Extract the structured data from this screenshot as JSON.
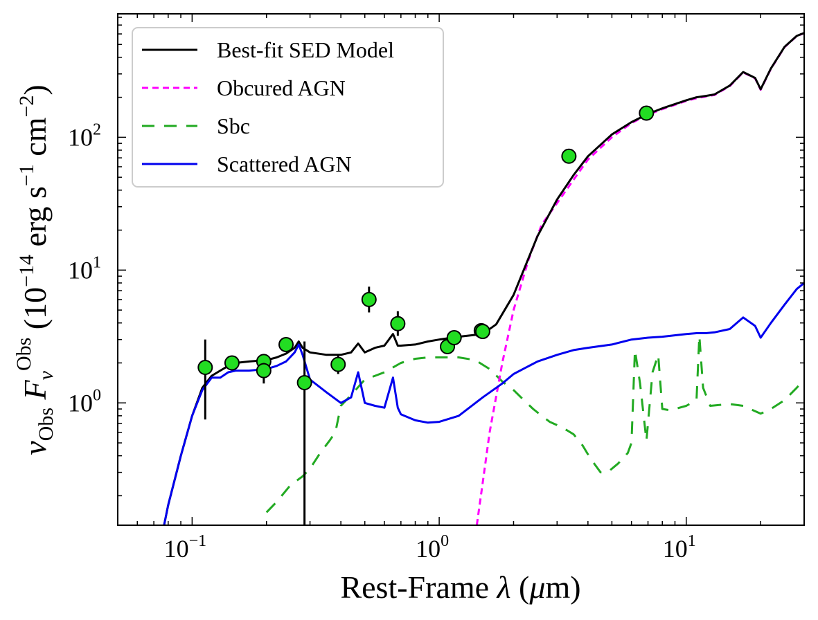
{
  "chart_data": {
    "type": "line",
    "xlabel": "Rest-Frame λ (μm)",
    "ylabel": "ν_Obs F_ν^Obs (10^−14 erg s^−1 cm^−2)",
    "x_scale": "log",
    "y_scale": "log",
    "xlim": [
      0.05,
      30
    ],
    "ylim": [
      0.12,
      850
    ],
    "grid": false,
    "legend_placement": "top-left",
    "x_ticks": [
      {
        "value": 0.1,
        "base": "10",
        "exp": "−1"
      },
      {
        "value": 1,
        "base": "10",
        "exp": "0"
      },
      {
        "value": 10,
        "base": "10",
        "exp": "1"
      }
    ],
    "y_ticks": [
      {
        "value": 1,
        "base": "10",
        "exp": "0"
      },
      {
        "value": 10,
        "base": "10",
        "exp": "1"
      },
      {
        "value": 100,
        "base": "10",
        "exp": "2"
      }
    ],
    "series": [
      {
        "name": "Best-fit SED Model",
        "style": "solid",
        "color": "#000000",
        "x": [
          0.077,
          0.08,
          0.09,
          0.1,
          0.11,
          0.12,
          0.13,
          0.14,
          0.15,
          0.17,
          0.2,
          0.22,
          0.24,
          0.26,
          0.27,
          0.28,
          0.3,
          0.35,
          0.4,
          0.44,
          0.47,
          0.5,
          0.55,
          0.6,
          0.65,
          0.68,
          0.7,
          0.8,
          0.9,
          1.0,
          1.2,
          1.5,
          1.7,
          2.0,
          2.5,
          3.0,
          3.5,
          4.0,
          5.0,
          6.0,
          7.0,
          8.0,
          10.0,
          11.0,
          12.0,
          13.0,
          15.0,
          17.0,
          19.0,
          20.0,
          22.0,
          25.0,
          28.0,
          30.0
        ],
        "y": [
          0.12,
          0.17,
          0.4,
          0.8,
          1.3,
          1.6,
          1.75,
          1.9,
          2.0,
          2.05,
          2.1,
          2.2,
          2.35,
          2.6,
          2.9,
          2.6,
          2.4,
          2.3,
          2.3,
          2.4,
          2.8,
          2.4,
          2.6,
          2.7,
          3.3,
          2.7,
          2.7,
          2.75,
          2.9,
          3.0,
          3.15,
          3.3,
          3.9,
          6.5,
          18,
          34,
          52,
          72,
          105,
          130,
          150,
          165,
          190,
          200,
          205,
          210,
          245,
          310,
          280,
          230,
          330,
          480,
          580,
          610
        ]
      },
      {
        "name": "Obcured AGN",
        "style": "dashed",
        "color": "#ff00ff",
        "x": [
          1.42,
          1.5,
          1.6,
          1.8,
          2.0,
          2.3,
          2.6,
          3.0,
          3.5,
          4.0,
          5.0,
          6.0,
          7.0,
          8.0,
          10.0,
          11.0,
          12.0,
          13.0,
          15.0,
          17.0,
          19.0,
          20.0,
          22.0,
          25.0,
          28.0,
          30.0
        ],
        "y": [
          0.12,
          0.25,
          0.6,
          2.0,
          5.0,
          12,
          22,
          32,
          48,
          68,
          100,
          128,
          148,
          163,
          188,
          197,
          203,
          208,
          243,
          308,
          278,
          228,
          328,
          478,
          578,
          608
        ]
      },
      {
        "name": "Sbc",
        "style": "dashed",
        "color": "#22aa22",
        "x": [
          0.2,
          0.22,
          0.25,
          0.28,
          0.3,
          0.33,
          0.36,
          0.38,
          0.4,
          0.45,
          0.5,
          0.55,
          0.6,
          0.7,
          0.8,
          0.9,
          1.0,
          1.2,
          1.4,
          1.6,
          1.8,
          2.0,
          2.2,
          2.4,
          2.6,
          2.8,
          3.0,
          3.3,
          3.5,
          3.8,
          4.1,
          4.5,
          4.8,
          5.3,
          5.8,
          6.0,
          6.2,
          6.5,
          6.9,
          7.3,
          7.7,
          8.0,
          8.6,
          9.0,
          10.0,
          11.0,
          11.3,
          11.7,
          12.5,
          15.0,
          17.0,
          20.0,
          22.0,
          25.0,
          28.0,
          30.0
        ],
        "y": [
          0.15,
          0.18,
          0.24,
          0.28,
          0.32,
          0.42,
          0.52,
          0.6,
          0.95,
          1.2,
          1.5,
          1.6,
          1.7,
          2.0,
          2.15,
          2.2,
          2.2,
          2.2,
          2.1,
          1.8,
          1.45,
          1.25,
          1.05,
          0.9,
          0.8,
          0.72,
          0.68,
          0.62,
          0.58,
          0.48,
          0.38,
          0.3,
          0.3,
          0.35,
          0.42,
          0.5,
          2.5,
          1.4,
          0.52,
          1.7,
          2.3,
          0.9,
          0.88,
          0.9,
          0.95,
          1.05,
          3.2,
          1.3,
          0.95,
          0.98,
          0.95,
          0.83,
          0.9,
          1.05,
          1.3,
          1.5
        ]
      },
      {
        "name": "Scattered AGN",
        "style": "solid",
        "color": "#0000ee",
        "x": [
          0.077,
          0.08,
          0.09,
          0.1,
          0.11,
          0.12,
          0.13,
          0.14,
          0.15,
          0.17,
          0.2,
          0.22,
          0.24,
          0.26,
          0.27,
          0.28,
          0.3,
          0.35,
          0.4,
          0.44,
          0.47,
          0.5,
          0.55,
          0.6,
          0.65,
          0.68,
          0.7,
          0.8,
          0.9,
          1.0,
          1.2,
          1.5,
          1.8,
          2.0,
          2.5,
          3.0,
          3.5,
          4.0,
          5.0,
          6.0,
          7.0,
          8.0,
          10.0,
          11.0,
          12.0,
          13.0,
          15.0,
          17.0,
          19.0,
          20.0,
          22.0,
          25.0,
          28.0,
          30.0
        ],
        "y": [
          0.12,
          0.17,
          0.4,
          0.8,
          1.25,
          1.55,
          1.55,
          1.7,
          1.75,
          1.75,
          1.8,
          1.9,
          2.05,
          2.4,
          2.75,
          2.3,
          1.5,
          1.2,
          1.0,
          1.1,
          1.7,
          1.0,
          0.95,
          0.92,
          1.55,
          0.92,
          0.82,
          0.74,
          0.71,
          0.72,
          0.8,
          1.1,
          1.4,
          1.65,
          2.05,
          2.3,
          2.5,
          2.6,
          2.75,
          3.0,
          3.1,
          3.15,
          3.3,
          3.35,
          3.35,
          3.4,
          3.6,
          4.4,
          3.8,
          3.1,
          4.0,
          5.5,
          7.2,
          8.0
        ]
      }
    ],
    "observations": {
      "marker_color": "#22dd22",
      "points": [
        {
          "x": 0.113,
          "y": 1.85,
          "ylo": 0.75,
          "yhi": 3.0
        },
        {
          "x": 0.145,
          "y": 2.0,
          "ylo": 1.85,
          "yhi": 2.15
        },
        {
          "x": 0.195,
          "y": 2.05,
          "ylo": 1.85,
          "yhi": 2.25
        },
        {
          "x": 0.195,
          "y": 1.75,
          "ylo": 1.4,
          "yhi": 2.0
        },
        {
          "x": 0.24,
          "y": 2.75,
          "ylo": 2.45,
          "yhi": 3.1
        },
        {
          "x": 0.285,
          "y": 1.42,
          "ylo": 0.12,
          "yhi": 2.9
        },
        {
          "x": 0.39,
          "y": 1.95,
          "ylo": 1.65,
          "yhi": 2.3
        },
        {
          "x": 0.52,
          "y": 6.0,
          "ylo": 4.8,
          "yhi": 7.5
        },
        {
          "x": 0.68,
          "y": 3.95,
          "ylo": 3.2,
          "yhi": 4.9
        },
        {
          "x": 1.08,
          "y": 2.65,
          "ylo": 2.45,
          "yhi": 2.85
        },
        {
          "x": 1.15,
          "y": 3.1,
          "ylo": 2.9,
          "yhi": 3.3
        },
        {
          "x": 1.48,
          "y": 3.5,
          "ylo": 3.3,
          "yhi": 3.75
        },
        {
          "x": 1.5,
          "y": 3.45,
          "ylo": 3.25,
          "yhi": 3.7
        },
        {
          "x": 3.35,
          "y": 72,
          "ylo": 66,
          "yhi": 78
        },
        {
          "x": 6.9,
          "y": 152,
          "ylo": 140,
          "yhi": 165
        }
      ]
    }
  }
}
